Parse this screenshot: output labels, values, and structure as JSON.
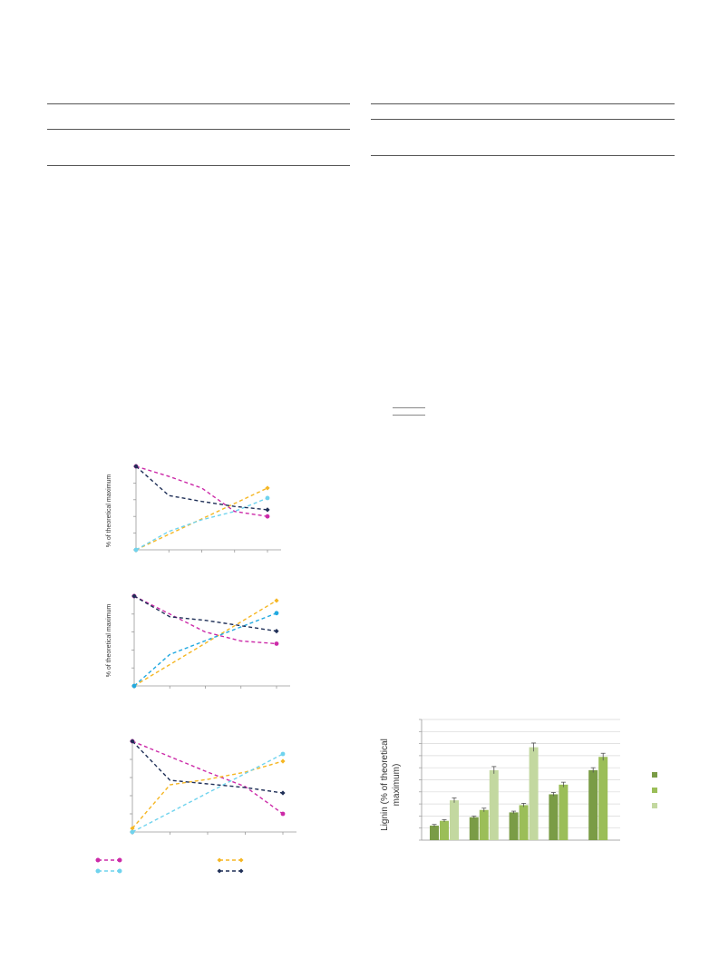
{
  "colors": {
    "magenta": "#cc2aa8",
    "orange": "#f5b623",
    "cyan": "#6fd3ee",
    "cyan2": "#22a9e0",
    "navy": "#1f2f57",
    "bar_dark": "#7a9c46",
    "bar_mid": "#9bbe58",
    "bar_light": "#c3d8a0",
    "axis": "#999999"
  },
  "chart_data": [
    {
      "type": "line",
      "ylabel": "% of theoretical maximum",
      "x": [
        0,
        1,
        2,
        3,
        4
      ],
      "ylim": [
        0,
        100
      ],
      "series": [
        {
          "color_key": "magenta",
          "values": [
            100,
            88,
            74,
            46,
            40
          ]
        },
        {
          "color_key": "orange",
          "x": [
            0,
            4
          ],
          "values": [
            0,
            74
          ]
        },
        {
          "color_key": "cyan",
          "x": [
            0,
            1,
            2,
            3,
            4
          ],
          "values": [
            0,
            22,
            36,
            46,
            62
          ]
        },
        {
          "color_key": "navy",
          "values": [
            100,
            65,
            58,
            52,
            48
          ]
        }
      ]
    },
    {
      "type": "line",
      "ylabel": "% of theoretical maximum",
      "x": [
        0,
        1,
        2,
        3,
        4
      ],
      "ylim": [
        0,
        100
      ],
      "series": [
        {
          "color_key": "magenta",
          "values": [
            100,
            80,
            60,
            50,
            47
          ]
        },
        {
          "color_key": "orange",
          "x": [
            0,
            4
          ],
          "values": [
            0,
            95
          ]
        },
        {
          "color_key": "cyan2",
          "x": [
            0,
            1,
            4
          ],
          "values": [
            0,
            35,
            81
          ]
        },
        {
          "color_key": "navy",
          "values": [
            100,
            77,
            73,
            67,
            61
          ]
        }
      ]
    },
    {
      "type": "line",
      "ylabel": "",
      "x": [
        0,
        1,
        2,
        3,
        4
      ],
      "ylim": [
        0,
        100
      ],
      "series": [
        {
          "color_key": "magenta",
          "values": [
            100,
            83,
            66,
            50,
            20
          ]
        },
        {
          "color_key": "orange",
          "x": [
            0,
            1,
            2,
            3,
            4
          ],
          "values": [
            4,
            52,
            58,
            66,
            78
          ]
        },
        {
          "color_key": "cyan",
          "x": [
            0,
            4
          ],
          "values": [
            0,
            86
          ]
        },
        {
          "color_key": "navy",
          "values": [
            100,
            57,
            53,
            49,
            43
          ]
        }
      ]
    },
    {
      "type": "bar",
      "ylabel": "Lignin (% of theoretical maximum)",
      "ylim": [
        0,
        100
      ],
      "groups": [
        {
          "values": [
            12,
            16,
            33
          ],
          "errors": [
            1,
            1,
            2
          ]
        },
        {
          "values": [
            19,
            25,
            58
          ],
          "errors": [
            1,
            1.5,
            3
          ]
        },
        {
          "values": [
            23,
            29,
            77
          ],
          "errors": [
            1,
            1.5,
            3.5
          ]
        },
        {
          "values": [
            38,
            46,
            null
          ],
          "errors": [
            1.5,
            2,
            null
          ]
        },
        {
          "values": [
            58,
            69,
            null
          ],
          "errors": [
            2,
            3,
            null
          ]
        }
      ],
      "series_color_keys": [
        "bar_dark",
        "bar_mid",
        "bar_light"
      ]
    }
  ]
}
